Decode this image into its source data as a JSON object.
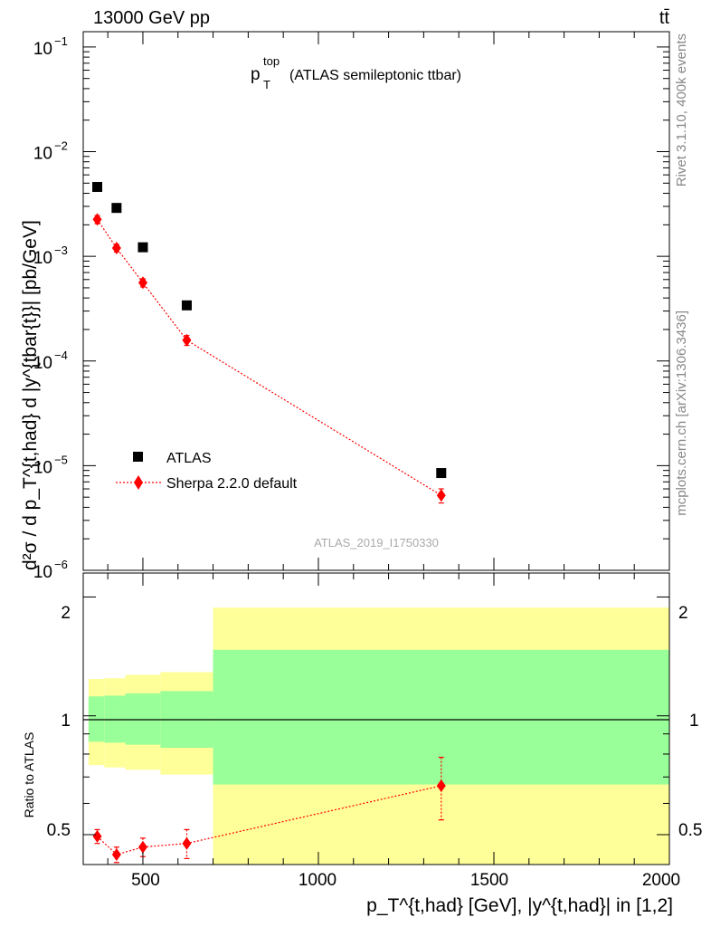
{
  "header": {
    "energy_label": "13000 GeV pp",
    "process_label": "tt̄",
    "rivet_label": "Rivet 3.1.10,  400k events",
    "mcplots_label": "mcplots.cern.ch [arXiv:1306.3436]",
    "analysis_id": "ATLAS_2019_I1750330"
  },
  "main_panel": {
    "title_main": "p",
    "title_sup": "top",
    "title_sub": "T",
    "title_rest": "(ATLAS semileptonic ttbar)",
    "ylabel": "d²σ / d p_T^{t,had} d |y^{tbar{t}}| [pb/GeV]",
    "y_ticks": [
      {
        "base": "10",
        "exp": "−1"
      },
      {
        "base": "10",
        "exp": "−2"
      },
      {
        "base": "10",
        "exp": "−3"
      },
      {
        "base": "10",
        "exp": "−4"
      },
      {
        "base": "10",
        "exp": "−5"
      },
      {
        "base": "10",
        "exp": "−6"
      }
    ],
    "legend": [
      {
        "label": "ATLAS",
        "color": "#000000",
        "marker": "square"
      },
      {
        "label": "Sherpa 2.2.0 default",
        "color": "#ff0000",
        "marker": "diamond"
      }
    ]
  },
  "ratio_panel": {
    "ylabel": "Ratio to ATLAS",
    "y_tick_labels": [
      "2",
      "1",
      "0.5"
    ],
    "x_tick_labels": [
      "500",
      "1000",
      "1500",
      "2000"
    ],
    "xlabel": "p_T^{t,had} [GeV], |y^{t,had}| in [1,2]"
  },
  "chart_data": [
    {
      "type": "scatter",
      "yscale": "log",
      "xlim": [
        330,
        2000
      ],
      "ylim": [
        1e-06,
        0.14
      ],
      "series": [
        {
          "name": "ATLAS",
          "color": "#000000",
          "x": [
            370,
            425,
            500,
            625,
            1350
          ],
          "y": [
            0.0046,
            0.0029,
            0.00122,
            0.00034,
            8.5e-06
          ]
        },
        {
          "name": "Sherpa 2.2.0 default",
          "color": "#ff0000",
          "x": [
            370,
            425,
            500,
            625,
            1350
          ],
          "y": [
            0.00225,
            0.0012,
            0.00056,
            0.000158,
            5.2e-06
          ],
          "yerr_low": [
            0.0002,
            0.0001,
            5e-05,
            1.7e-05,
            8e-07
          ],
          "yerr_high": [
            0.0002,
            0.0001,
            5e-05,
            1.7e-05,
            8e-07
          ]
        }
      ]
    },
    {
      "type": "scatter",
      "yscale": "log",
      "xlim": [
        330,
        2000
      ],
      "ylim": [
        0.42,
        2.3
      ],
      "reference_line": 1,
      "bands": [
        {
          "x_from": 345,
          "x_to": 390,
          "inner": [
            0.86,
            1.12
          ],
          "outer": [
            0.75,
            1.24
          ]
        },
        {
          "x_from": 390,
          "x_to": 450,
          "inner": [
            0.855,
            1.125
          ],
          "outer": [
            0.74,
            1.245
          ]
        },
        {
          "x_from": 450,
          "x_to": 550,
          "inner": [
            0.845,
            1.14
          ],
          "outer": [
            0.73,
            1.27
          ]
        },
        {
          "x_from": 550,
          "x_to": 700,
          "inner": [
            0.83,
            1.155
          ],
          "outer": [
            0.71,
            1.29
          ]
        },
        {
          "x_from": 700,
          "x_to": 2000,
          "inner": [
            0.67,
            1.47
          ],
          "outer": [
            0.41,
            1.88
          ]
        }
      ],
      "band_colors": {
        "inner": "#99ff99",
        "outer": "#ffff99"
      },
      "series": [
        {
          "name": "Sherpa 2.2.0 default",
          "color": "#ff0000",
          "x": [
            370,
            425,
            500,
            625,
            1350
          ],
          "y": [
            0.495,
            0.445,
            0.465,
            0.475,
            0.665
          ],
          "yerr_low": [
            0.02,
            0.02,
            0.025,
            0.04,
            0.12
          ],
          "yerr_high": [
            0.02,
            0.02,
            0.025,
            0.04,
            0.12
          ]
        }
      ]
    }
  ]
}
